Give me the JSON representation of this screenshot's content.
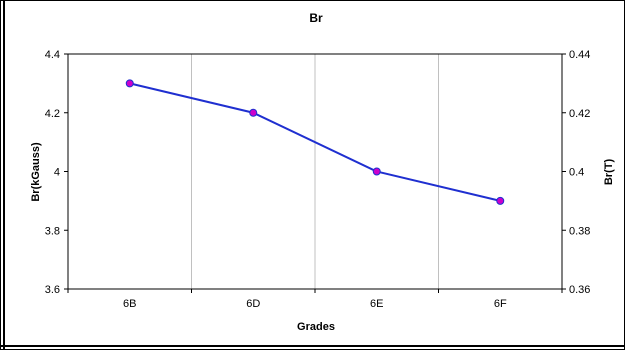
{
  "colors": {
    "line": "#1f2fd0",
    "marker": "#cc00cc",
    "grid": "#c0c0c0",
    "axis": "#000000"
  },
  "chart_data": {
    "type": "line",
    "title": "Br",
    "xlabel": "Grades",
    "ylabel": "Br(kGauss)",
    "y2label": "Br(T)",
    "categories": [
      "6B",
      "6D",
      "6E",
      "6F"
    ],
    "series": [
      {
        "values": [
          4.3,
          4.2,
          4.0,
          3.9
        ]
      }
    ],
    "ylim": [
      3.6,
      4.4
    ],
    "yticks": [
      "3.6",
      "3.8",
      "4",
      "4.2",
      "4.4"
    ],
    "y2lim": [
      0.36,
      0.44
    ],
    "y2ticks": [
      "0.36",
      "0.38",
      "0.4",
      "0.42",
      "0.44"
    ],
    "grid": "vertical"
  }
}
